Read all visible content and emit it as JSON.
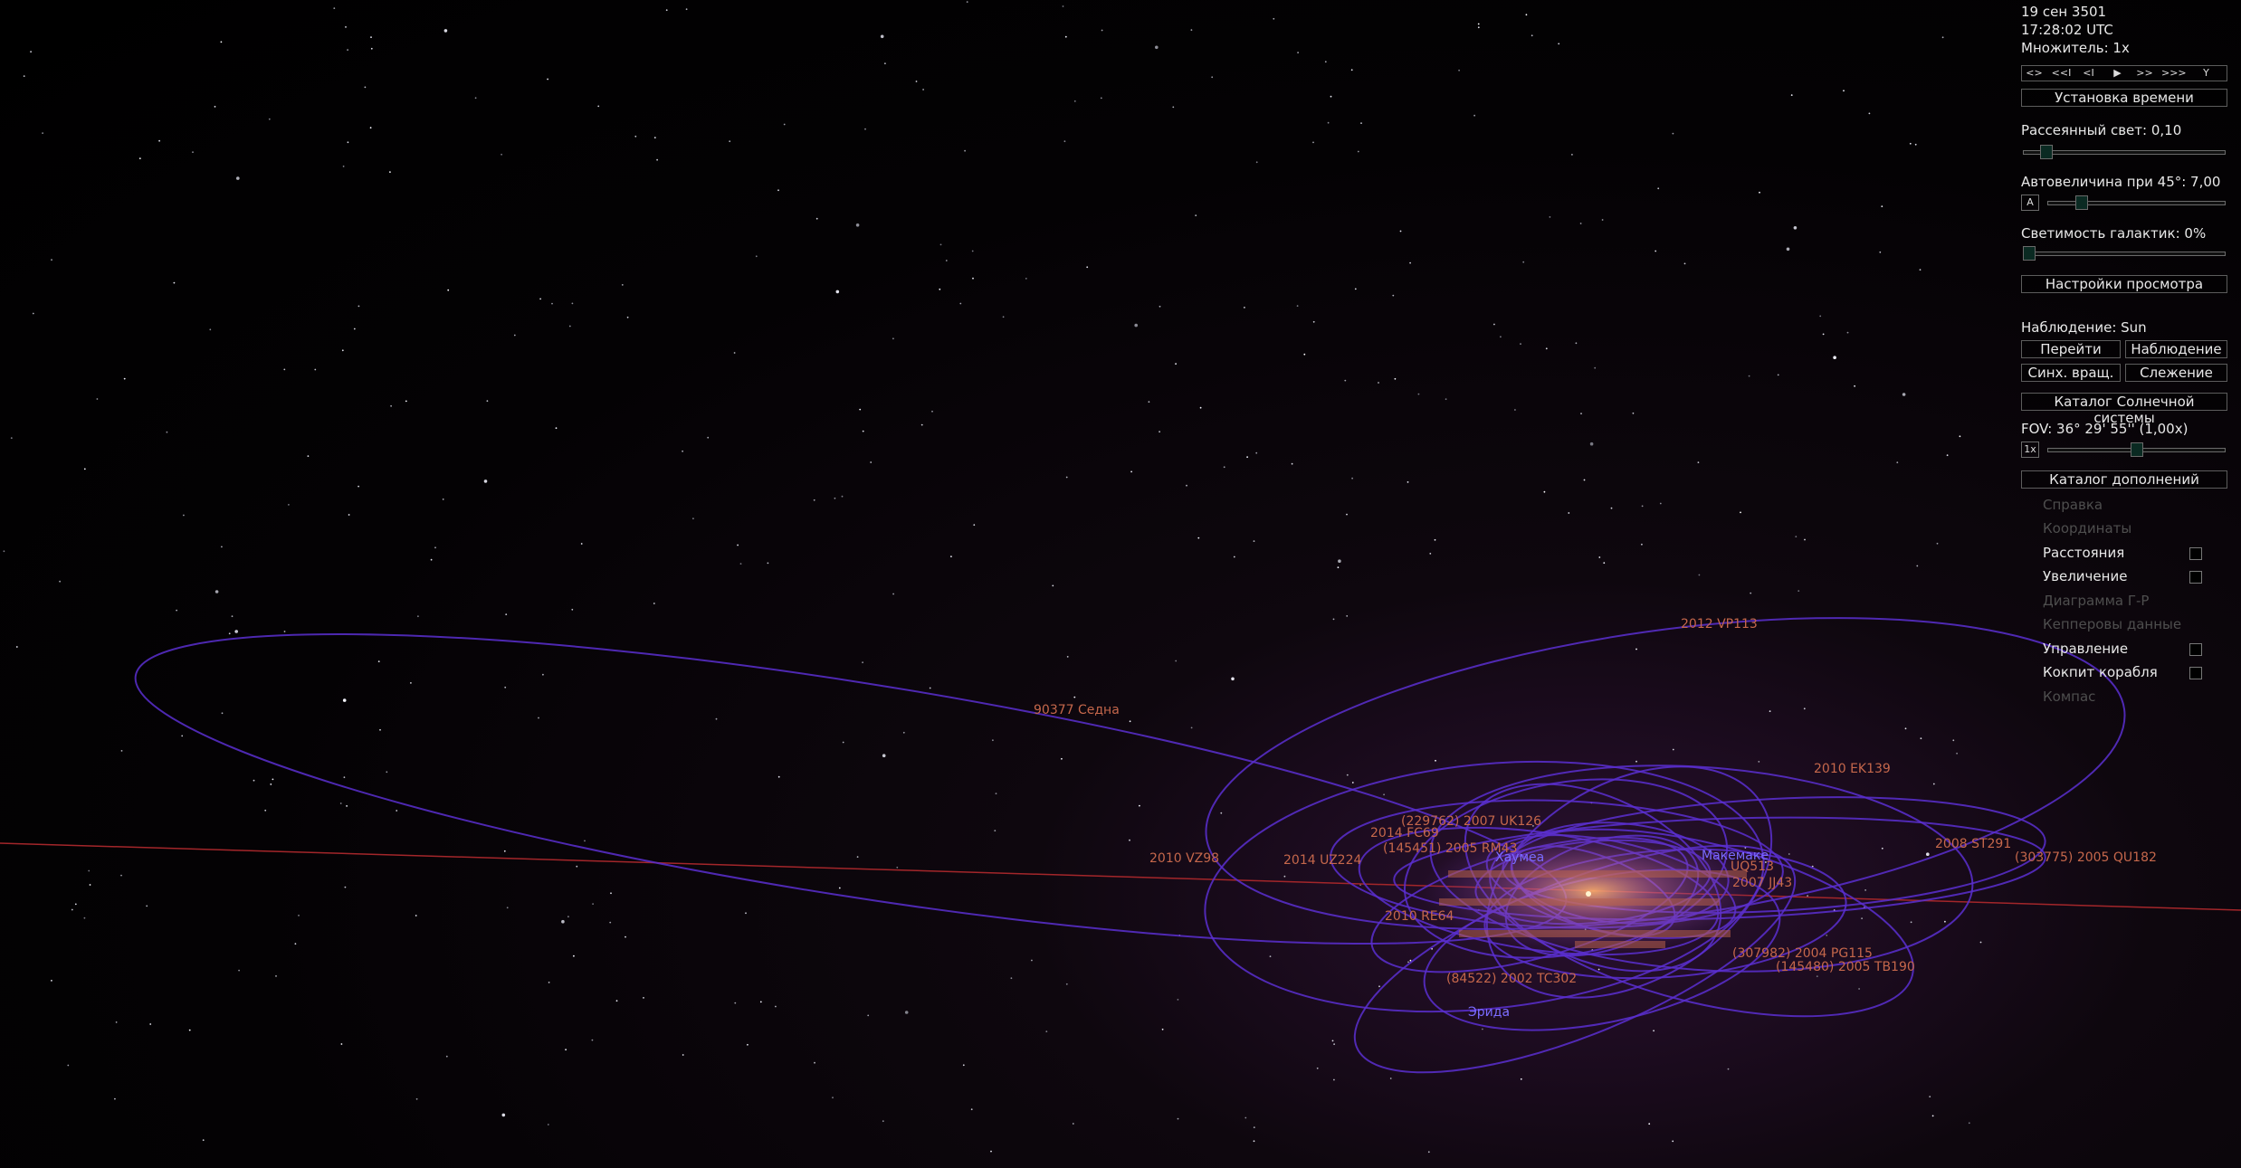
{
  "sky": {
    "orbit_labels": [
      {
        "id": "vp113",
        "text": "2012 VP113"
      },
      {
        "id": "sedna",
        "text": "90377 Седна"
      },
      {
        "id": "ek139",
        "text": "2010 EK139"
      },
      {
        "id": "st291",
        "text": "2008 ST291"
      },
      {
        "id": "qu182",
        "text": "(303775) 2005 QU182"
      },
      {
        "id": "vz98",
        "text": "2010 VZ98"
      },
      {
        "id": "uz224",
        "text": "2014 UZ224"
      },
      {
        "id": "uk126",
        "text": "(229762) 2007 UK126"
      },
      {
        "id": "fc69",
        "text": "2014 FC69"
      },
      {
        "id": "rm43",
        "text": "(145451) 2005 RM43"
      },
      {
        "id": "re64",
        "text": "2010 RE64"
      },
      {
        "id": "uq513",
        "text": "UQ513"
      },
      {
        "id": "jj43",
        "text": "2007 JJ43"
      },
      {
        "id": "pg115",
        "text": "(307982) 2004 PG115"
      },
      {
        "id": "tb190",
        "text": "(145480) 2005 TB190"
      },
      {
        "id": "tc302",
        "text": "(84522) 2002 TC302"
      },
      {
        "id": "eris",
        "text": "Эрида"
      },
      {
        "id": "haumea",
        "text": "Хаумеа"
      },
      {
        "id": "makemake",
        "text": "Макемаке"
      }
    ]
  },
  "panel": {
    "date": "19 сен 3501",
    "time": "17:28:02  UTC",
    "multiplier": "Множитель: 1x",
    "time_controls": [
      "<>",
      "<<I",
      "<I",
      "▶",
      ">>",
      ">>>",
      "Y"
    ],
    "set_time_button": "Установка времени",
    "ambient_label": "Рассеянный свет: 0,10",
    "ambient_value": 0.1,
    "automag_label": "Автовеличина при 45°: 7,00",
    "automag_toggle": "A",
    "galaxy_label": "Светимость галактик: 0%",
    "galaxy_value": 0,
    "view_settings_button": "Настройки просмотра",
    "observation_label": "Наблюдение: Sun",
    "goto_button": "Перейти",
    "observe_button": "Наблюдение",
    "sync_button": "Синх. вращ.",
    "track_button": "Слежение",
    "solar_catalog_button": "Каталог Солнечной системы",
    "fov_label": "FOV: 36° 29' 55'' (1,00x)",
    "fov_toggle": "1x",
    "addons_button": "Каталог дополнений",
    "menu": [
      {
        "label": "Справка",
        "enabled": false,
        "checkbox": false
      },
      {
        "label": "Координаты",
        "enabled": false,
        "checkbox": false
      },
      {
        "label": "Расстояния",
        "enabled": true,
        "checkbox": true
      },
      {
        "label": "Увеличение",
        "enabled": true,
        "checkbox": true
      },
      {
        "label": "Диаграмма Г-Р",
        "enabled": false,
        "checkbox": false
      },
      {
        "label": "Кепперовы данные",
        "enabled": false,
        "checkbox": false
      },
      {
        "label": "Управление",
        "enabled": true,
        "checkbox": true
      },
      {
        "label": "Кокпит корабля",
        "enabled": true,
        "checkbox": true
      },
      {
        "label": "Компас",
        "enabled": false,
        "checkbox": false
      }
    ]
  }
}
